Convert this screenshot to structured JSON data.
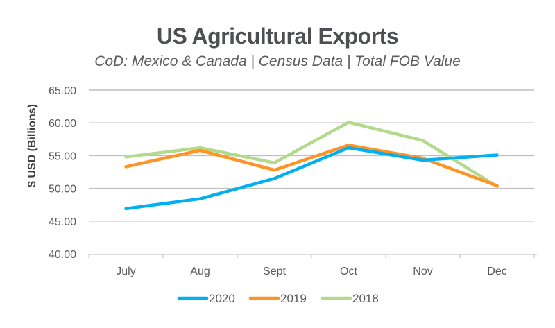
{
  "chart_data": {
    "type": "line",
    "title": "US Agricultural Exports",
    "subtitle": "CoD: Mexico & Canada | Census Data | Total FOB Value",
    "xlabel": "",
    "ylabel": "$ USD (Billions)",
    "ylim": [
      40,
      65
    ],
    "ytick_step": 5,
    "yticks": [
      "40.00",
      "45.00",
      "50.00",
      "55.00",
      "60.00",
      "65.00"
    ],
    "categories": [
      "July",
      "Aug",
      "Sept",
      "Oct",
      "Nov",
      "Dec"
    ],
    "grid": true,
    "legend_position": "bottom",
    "series": [
      {
        "name": "2020",
        "color": "#00b0f0",
        "values": [
          46.9,
          48.4,
          51.5,
          56.2,
          54.3,
          55.1
        ]
      },
      {
        "name": "2019",
        "color": "#ff9326",
        "values": [
          53.3,
          55.8,
          52.8,
          56.6,
          54.6,
          50.4
        ]
      },
      {
        "name": "2018",
        "color": "#b3d98a",
        "values": [
          54.8,
          56.2,
          53.9,
          60.1,
          57.3,
          50.3
        ]
      }
    ]
  }
}
